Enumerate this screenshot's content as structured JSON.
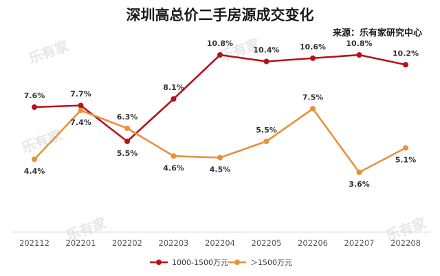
{
  "chart_data": {
    "type": "line",
    "title": "深圳高总价二手房源成交变化",
    "source": "来源：乐有家研究中心",
    "categories": [
      "202112",
      "202201",
      "202202",
      "202203",
      "202204",
      "202205",
      "202206",
      "202207",
      "202208"
    ],
    "series": [
      {
        "name": "1000-1500万元",
        "color": "#b5121b",
        "values": [
          7.6,
          7.7,
          5.5,
          8.1,
          10.8,
          10.4,
          10.6,
          10.8,
          10.2
        ],
        "labels": [
          "7.6%",
          "7.7%",
          "5.5%",
          "8.1%",
          "10.8%",
          "10.4%",
          "10.6%",
          "10.8%",
          "10.2%"
        ]
      },
      {
        "name": "＞1500万元",
        "color": "#e8913a",
        "values": [
          4.4,
          7.4,
          6.3,
          4.6,
          4.5,
          5.5,
          7.5,
          3.6,
          5.1
        ],
        "labels": [
          "4.4%",
          "7.4%",
          "6.3%",
          "4.6%",
          "4.5%",
          "5.5%",
          "7.5%",
          "3.6%",
          "5.1%"
        ]
      }
    ],
    "ylim": [
      0,
      12
    ],
    "xlabel": "",
    "ylabel": "",
    "legend": "bottom",
    "grid": false
  },
  "watermark": "乐有家"
}
